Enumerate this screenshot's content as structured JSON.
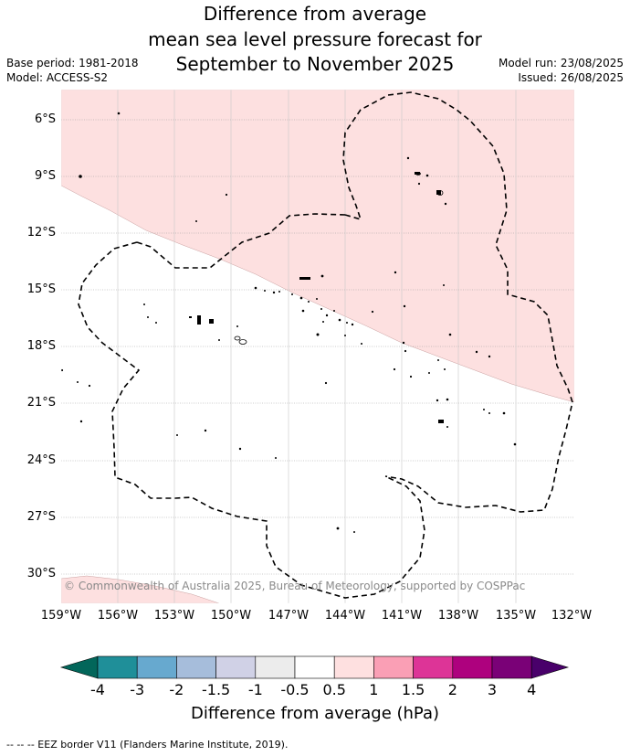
{
  "title": {
    "line1": "Difference from average",
    "line2": "mean sea level pressure forecast for",
    "line3": "September to November 2025"
  },
  "meta": {
    "base_period": "Base period: 1981-2018",
    "model": "Model: ACCESS-S2",
    "model_run": "Model run: 23/08/2025",
    "issued": "Issued: 26/08/2025"
  },
  "map": {
    "lat_labels": [
      "6°S",
      "9°S",
      "12°S",
      "15°S",
      "18°S",
      "21°S",
      "24°S",
      "27°S",
      "30°S"
    ],
    "lon_labels": [
      "159°W",
      "156°W",
      "153°W",
      "150°W",
      "147°W",
      "144°W",
      "141°W",
      "138°W",
      "135°W",
      "132°W"
    ],
    "anomaly_regions": [
      {
        "category": "0.5 to 1",
        "location": "north-east of map"
      },
      {
        "category": "0.5 to 1",
        "location": "south-west corner"
      }
    ],
    "copyright": "© Commonwealth of Australia 2025, Bureau of Meteorology, supported by COSPPac"
  },
  "colorbar": {
    "colors": [
      "#02665a",
      "#1f8f99",
      "#67a9cf",
      "#a6bddb",
      "#d0d1e6",
      "#ececec",
      "#ffffff",
      "#fee0e0",
      "#fa9fb5",
      "#dd3497",
      "#ae017e",
      "#7a0177",
      "#49006a"
    ],
    "tick_labels": [
      "-4",
      "-3",
      "-2",
      "-1.5",
      "-1",
      "-0.5",
      "0.5",
      "1",
      "1.5",
      "2",
      "3",
      "4"
    ],
    "title": "Difference from average (hPa)"
  },
  "footnote": "--  --  -- EEZ border V11 (Flanders Marine Institute, 2019)."
}
